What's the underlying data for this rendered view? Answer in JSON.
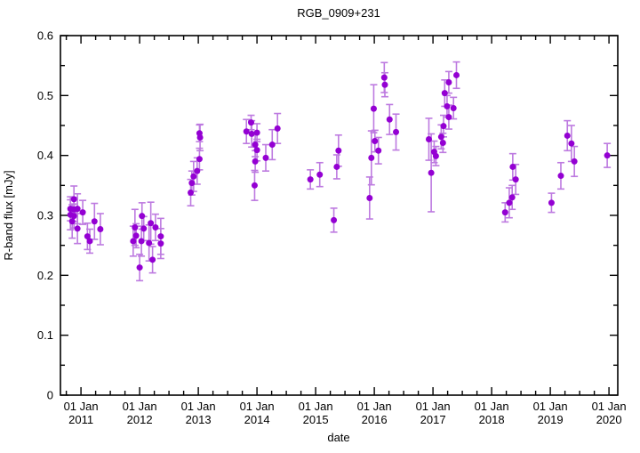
{
  "chart_data": {
    "type": "scatter",
    "title": "RGB_0909+231",
    "xlabel": "date",
    "ylabel": "R-band flux [mJy]",
    "legend": "none",
    "grid": false,
    "xlim": [
      2010.65,
      2020.15
    ],
    "ylim": [
      0,
      0.6
    ],
    "x_minor_interval_years": 0.25,
    "y_minor_interval": 0.05,
    "point_color": "#9400d3",
    "errorbar_color": "#bd7ae0",
    "axis_color": "#000000",
    "x_ticks": [
      {
        "pos": 2011,
        "line1": "01 Jan",
        "line2": "2011"
      },
      {
        "pos": 2012,
        "line1": "01 Jan",
        "line2": "2012"
      },
      {
        "pos": 2013,
        "line1": "01 Jan",
        "line2": "2013"
      },
      {
        "pos": 2014,
        "line1": "01 Jan",
        "line2": "2014"
      },
      {
        "pos": 2015,
        "line1": "01 Jan",
        "line2": "2015"
      },
      {
        "pos": 2016,
        "line1": "01 Jan",
        "line2": "2016"
      },
      {
        "pos": 2017,
        "line1": "01 Jan",
        "line2": "2017"
      },
      {
        "pos": 2018,
        "line1": "01 Jan",
        "line2": "2018"
      },
      {
        "pos": 2019,
        "line1": "01 Jan",
        "line2": "2019"
      },
      {
        "pos": 2020,
        "line1": "01 Jan",
        "line2": "2020"
      }
    ],
    "y_ticks": [
      {
        "pos": 0,
        "label": "0"
      },
      {
        "pos": 0.1,
        "label": "0.1"
      },
      {
        "pos": 0.2,
        "label": "0.2"
      },
      {
        "pos": 0.3,
        "label": "0.3"
      },
      {
        "pos": 0.4,
        "label": "0.4"
      },
      {
        "pos": 0.5,
        "label": "0.5"
      },
      {
        "pos": 0.6,
        "label": "0.6"
      }
    ],
    "points": [
      [
        2010.82,
        0.311,
        0.02
      ],
      [
        2010.82,
        0.301,
        0.025
      ],
      [
        2010.85,
        0.29,
        0.028
      ],
      [
        2010.88,
        0.327,
        0.022
      ],
      [
        2010.88,
        0.31,
        0.02
      ],
      [
        2010.88,
        0.299,
        0.02
      ],
      [
        2010.94,
        0.311,
        0.025
      ],
      [
        2010.94,
        0.278,
        0.025
      ],
      [
        2011.03,
        0.305,
        0.02
      ],
      [
        2011.11,
        0.265,
        0.022
      ],
      [
        2011.15,
        0.257,
        0.02
      ],
      [
        2011.23,
        0.29,
        0.03
      ],
      [
        2011.33,
        0.277,
        0.026
      ],
      [
        2011.89,
        0.257,
        0.025
      ],
      [
        2011.92,
        0.28,
        0.03
      ],
      [
        2011.94,
        0.266,
        0.02
      ],
      [
        2012.0,
        0.213,
        0.022
      ],
      [
        2012.03,
        0.257,
        0.025
      ],
      [
        2012.04,
        0.299,
        0.022
      ],
      [
        2012.07,
        0.278,
        0.02
      ],
      [
        2012.16,
        0.254,
        0.03
      ],
      [
        2012.19,
        0.287,
        0.035
      ],
      [
        2012.22,
        0.226,
        0.022
      ],
      [
        2012.27,
        0.28,
        0.022
      ],
      [
        2012.36,
        0.265,
        0.03
      ],
      [
        2012.36,
        0.253,
        0.025
      ],
      [
        2012.87,
        0.338,
        0.022
      ],
      [
        2012.89,
        0.354,
        0.02
      ],
      [
        2012.92,
        0.365,
        0.025
      ],
      [
        2012.98,
        0.374,
        0.022
      ],
      [
        2013.02,
        0.394,
        0.018
      ],
      [
        2013.02,
        0.437,
        0.014
      ],
      [
        2013.03,
        0.43,
        0.022
      ],
      [
        2013.82,
        0.44,
        0.02
      ],
      [
        2013.9,
        0.455,
        0.012
      ],
      [
        2013.91,
        0.436,
        0.022
      ],
      [
        2013.96,
        0.35,
        0.025
      ],
      [
        2013.97,
        0.418,
        0.02
      ],
      [
        2013.97,
        0.39,
        0.018
      ],
      [
        2014.0,
        0.438,
        0.015
      ],
      [
        2014.0,
        0.409,
        0.018
      ],
      [
        2014.15,
        0.396,
        0.022
      ],
      [
        2014.26,
        0.418,
        0.025
      ],
      [
        2014.35,
        0.445,
        0.025
      ],
      [
        2014.91,
        0.36,
        0.016
      ],
      [
        2015.07,
        0.368,
        0.02
      ],
      [
        2015.31,
        0.292,
        0.02
      ],
      [
        2015.36,
        0.381,
        0.02
      ],
      [
        2015.39,
        0.408,
        0.026
      ],
      [
        2015.92,
        0.329,
        0.035
      ],
      [
        2015.95,
        0.396,
        0.045
      ],
      [
        2015.99,
        0.478,
        0.04
      ],
      [
        2016.01,
        0.424,
        0.018
      ],
      [
        2016.07,
        0.408,
        0.022
      ],
      [
        2016.17,
        0.53,
        0.025
      ],
      [
        2016.18,
        0.518,
        0.02
      ],
      [
        2016.26,
        0.46,
        0.025
      ],
      [
        2016.37,
        0.439,
        0.03
      ],
      [
        2016.93,
        0.427,
        0.035
      ],
      [
        2016.97,
        0.371,
        0.065
      ],
      [
        2017.02,
        0.406,
        0.018
      ],
      [
        2017.05,
        0.399,
        0.016
      ],
      [
        2017.14,
        0.431,
        0.02
      ],
      [
        2017.17,
        0.421,
        0.016
      ],
      [
        2017.18,
        0.449,
        0.018
      ],
      [
        2017.2,
        0.504,
        0.022
      ],
      [
        2017.24,
        0.482,
        0.018
      ],
      [
        2017.27,
        0.522,
        0.018
      ],
      [
        2017.27,
        0.464,
        0.02
      ],
      [
        2017.35,
        0.479,
        0.018
      ],
      [
        2017.4,
        0.534,
        0.022
      ],
      [
        2018.23,
        0.305,
        0.016
      ],
      [
        2018.3,
        0.321,
        0.025
      ],
      [
        2018.35,
        0.33,
        0.02
      ],
      [
        2018.36,
        0.381,
        0.022
      ],
      [
        2018.41,
        0.36,
        0.025
      ],
      [
        2019.02,
        0.321,
        0.016
      ],
      [
        2019.18,
        0.366,
        0.022
      ],
      [
        2019.29,
        0.433,
        0.025
      ],
      [
        2019.36,
        0.42,
        0.03
      ],
      [
        2019.41,
        0.39,
        0.025
      ],
      [
        2019.97,
        0.4,
        0.02
      ]
    ]
  }
}
